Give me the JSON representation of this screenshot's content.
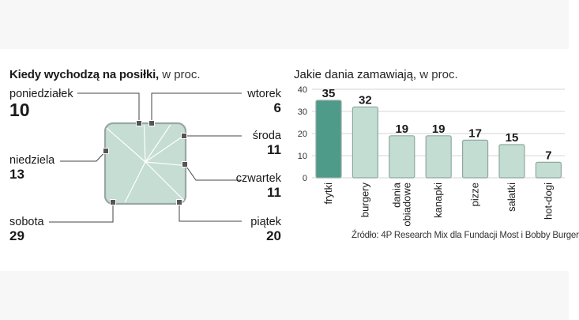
{
  "left_panel": {
    "title": "Kiedy wychodzą na posiłki,",
    "unit": "w proc.",
    "days": [
      {
        "name": "poniedziałek",
        "value": 10
      },
      {
        "name": "wtorek",
        "value": 6
      },
      {
        "name": "środa",
        "value": 11
      },
      {
        "name": "czwartek",
        "value": 11
      },
      {
        "name": "piątek",
        "value": 20
      },
      {
        "name": "sobota",
        "value": 29
      },
      {
        "name": "niedziela",
        "value": 13
      }
    ]
  },
  "right_panel": {
    "title": "Jakie dania zamawiają,",
    "unit": "w proc."
  },
  "chart_data": [
    {
      "type": "pie",
      "title": "Kiedy wychodzą na posiłki, w proc.",
      "categories": [
        "poniedziałek",
        "wtorek",
        "środa",
        "czwartek",
        "piątek",
        "sobota",
        "niedziela"
      ],
      "values": [
        10,
        6,
        11,
        11,
        20,
        29,
        13
      ]
    },
    {
      "type": "bar",
      "title": "Jakie dania zamawiają, w proc.",
      "categories": [
        "frytki",
        "burgery",
        "dania obiadowe",
        "kanapki",
        "pizze",
        "sałatki",
        "hot-dogi"
      ],
      "values": [
        35,
        32,
        19,
        19,
        17,
        15,
        7
      ],
      "yticks": [
        "0",
        "10",
        "20",
        "30",
        "40"
      ],
      "ylim": [
        0,
        40
      ],
      "grid": true,
      "highlight_color": "#4e9b8a",
      "bar_color": "#c3ddd3"
    }
  ],
  "source": "Źródło: 4P Research Mix dla Fundacji Most i Bobby Burger"
}
